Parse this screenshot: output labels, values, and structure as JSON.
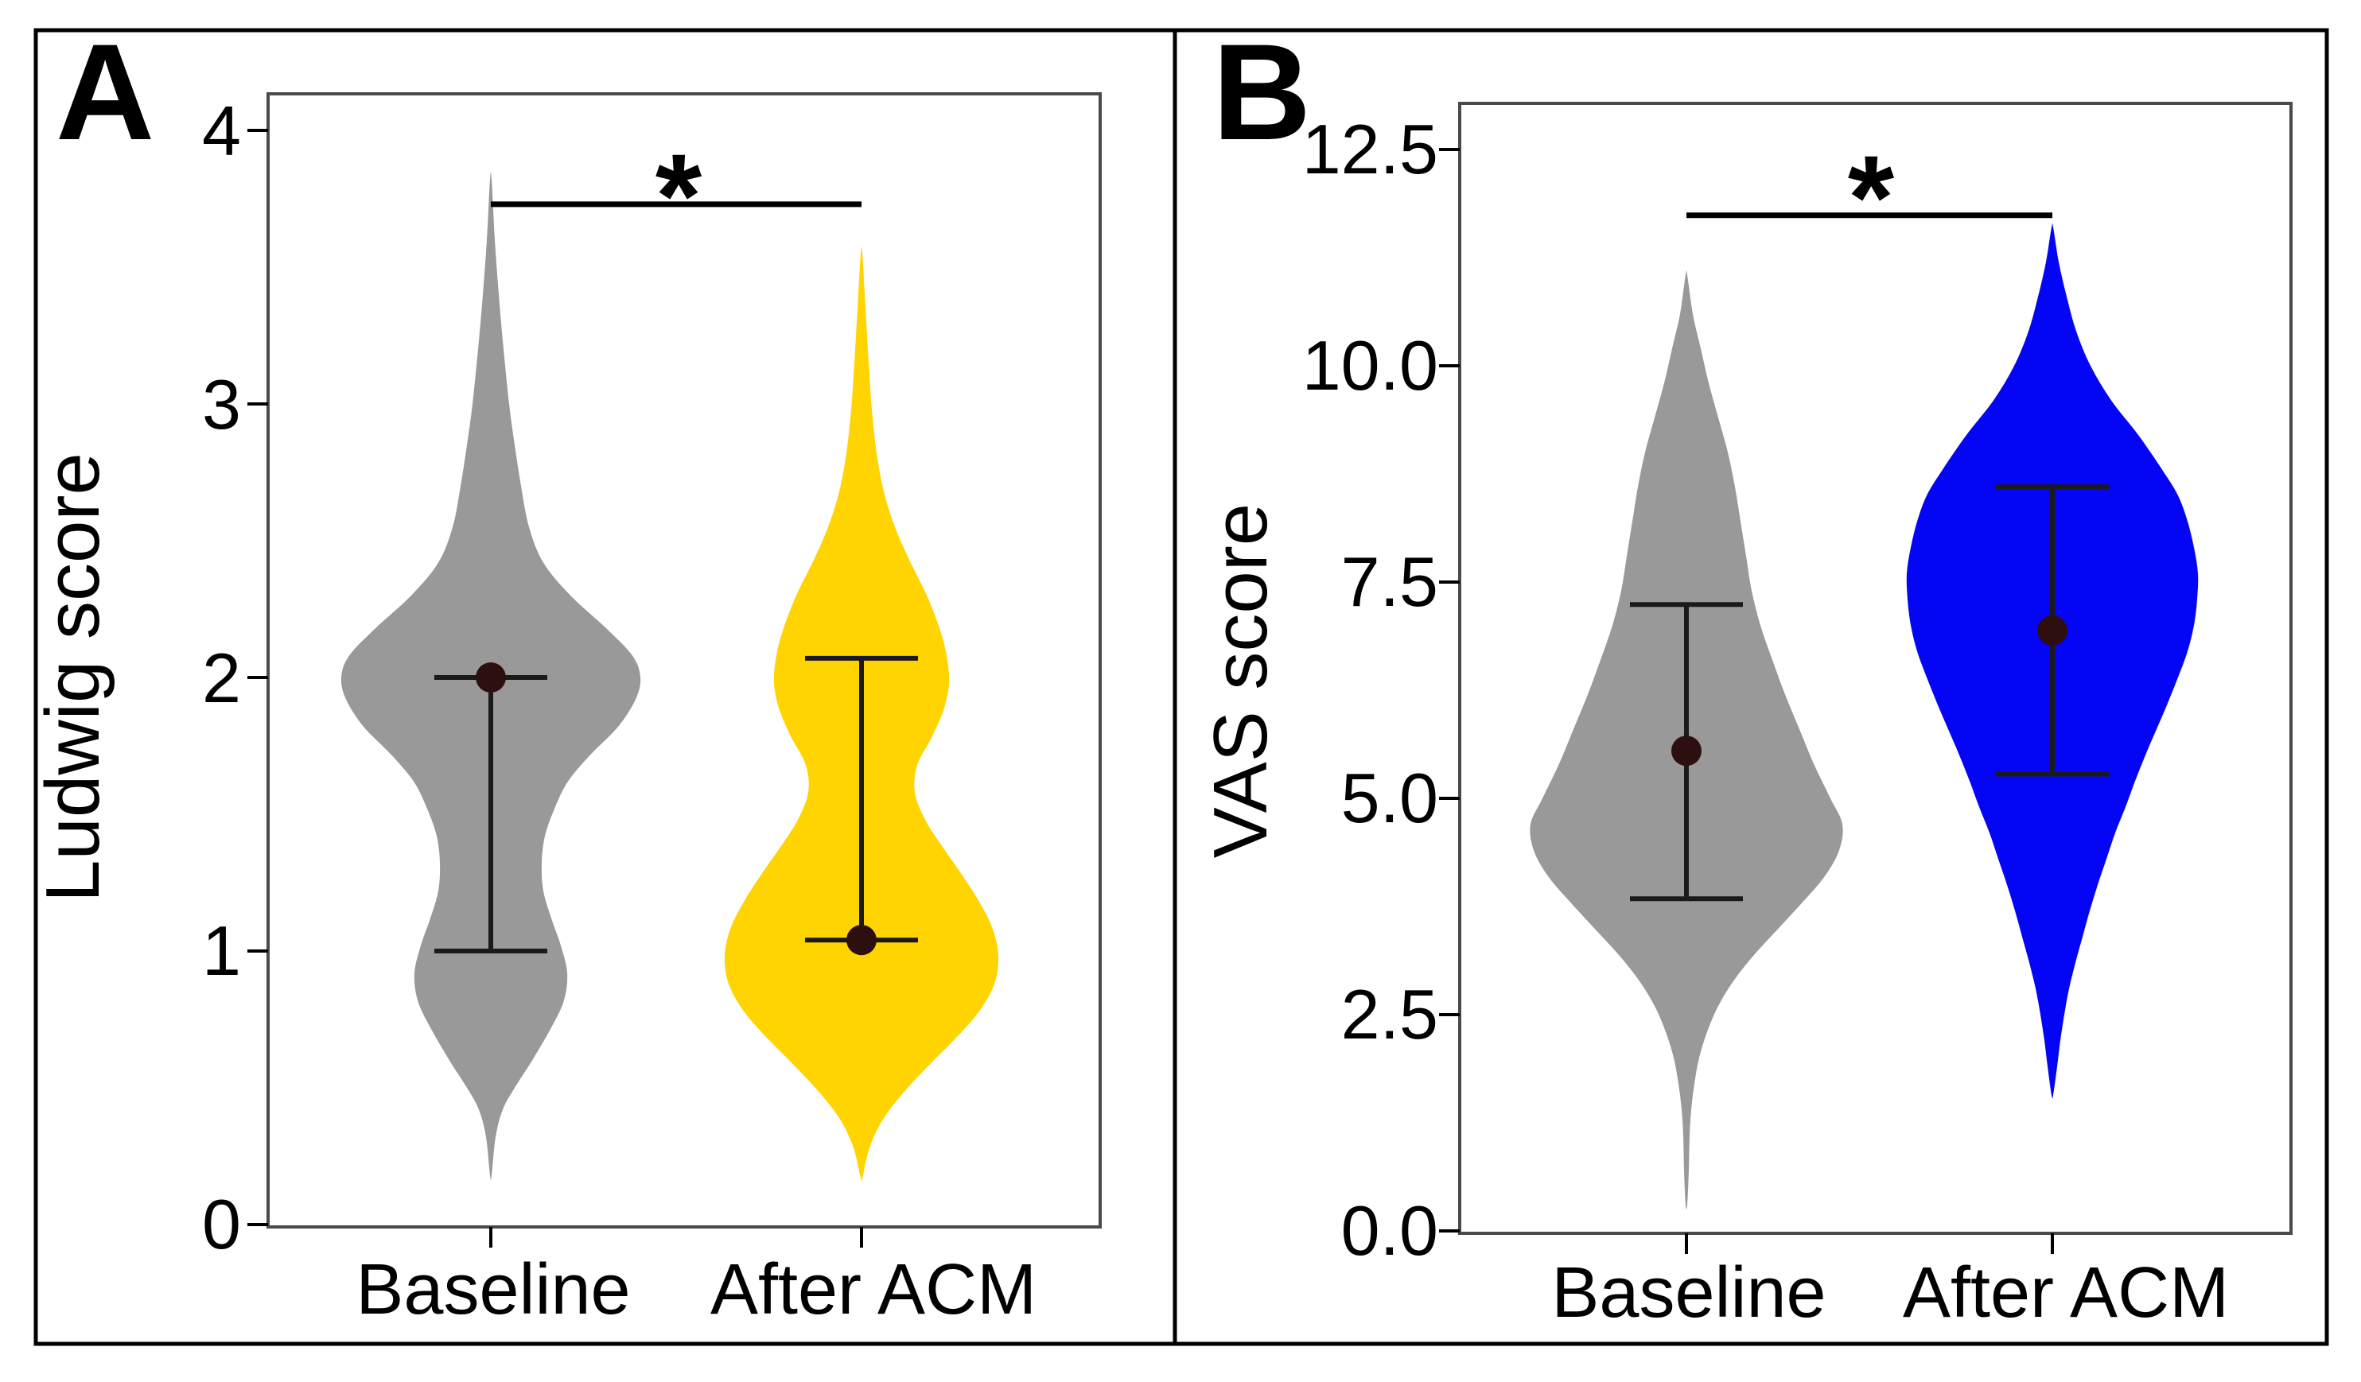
{
  "figure": {
    "panel_letters": [
      "A",
      "B"
    ],
    "background": "#ffffff",
    "border_color": "#000000"
  },
  "chart_data": [
    {
      "type": "violin",
      "panel": "A",
      "title": "",
      "xlabel": "",
      "ylabel": "Ludwig score",
      "ylim": [
        0,
        4
      ],
      "yticks": [
        4,
        3,
        2,
        1,
        0
      ],
      "ytick_labels": [
        "4",
        "3",
        "2",
        "1",
        "0"
      ],
      "categories": [
        "Baseline",
        "After ACM"
      ],
      "grid": false,
      "legend": "none",
      "marker_color": "#2e0f0f",
      "line_color": "#1a1a1a",
      "box_color": "#4a4a4a",
      "significance": {
        "label": "*",
        "between": [
          0,
          1
        ],
        "bar_y": 3.73
      },
      "series": [
        {
          "name": "Baseline",
          "color": "#999999",
          "mean": 2.0,
          "err_low": 1.0,
          "err_high": 2.0,
          "range": [
            0.18,
            3.82
          ],
          "profile": [
            [
              3.82,
              1
            ],
            [
              3.6,
              5
            ],
            [
              3.4,
              10
            ],
            [
              3.2,
              16
            ],
            [
              3.0,
              23
            ],
            [
              2.85,
              30
            ],
            [
              2.7,
              38
            ],
            [
              2.55,
              48
            ],
            [
              2.42,
              66
            ],
            [
              2.3,
              100
            ],
            [
              2.18,
              145
            ],
            [
              2.08,
              178
            ],
            [
              2.0,
              188
            ],
            [
              1.92,
              182
            ],
            [
              1.82,
              160
            ],
            [
              1.72,
              126
            ],
            [
              1.62,
              97
            ],
            [
              1.52,
              80
            ],
            [
              1.42,
              68
            ],
            [
              1.32,
              64
            ],
            [
              1.22,
              66
            ],
            [
              1.12,
              76
            ],
            [
              1.02,
              88
            ],
            [
              0.92,
              96
            ],
            [
              0.82,
              92
            ],
            [
              0.72,
              76
            ],
            [
              0.6,
              52
            ],
            [
              0.5,
              30
            ],
            [
              0.42,
              15
            ],
            [
              0.32,
              6
            ],
            [
              0.18,
              1
            ]
          ]
        },
        {
          "name": "After ACM",
          "color": "#ffd400",
          "mean": 1.04,
          "err_low": 1.04,
          "err_high": 2.07,
          "range": [
            0.17,
            3.55
          ],
          "profile": [
            [
              3.55,
              1
            ],
            [
              3.35,
              5
            ],
            [
              3.15,
              9
            ],
            [
              2.98,
              13
            ],
            [
              2.82,
              19
            ],
            [
              2.68,
              28
            ],
            [
              2.55,
              42
            ],
            [
              2.43,
              60
            ],
            [
              2.3,
              82
            ],
            [
              2.18,
              98
            ],
            [
              2.08,
              107
            ],
            [
              1.98,
              110
            ],
            [
              1.88,
              103
            ],
            [
              1.78,
              88
            ],
            [
              1.68,
              70
            ],
            [
              1.58,
              67
            ],
            [
              1.48,
              80
            ],
            [
              1.38,
              102
            ],
            [
              1.28,
              126
            ],
            [
              1.18,
              148
            ],
            [
              1.08,
              165
            ],
            [
              0.98,
              172
            ],
            [
              0.88,
              167
            ],
            [
              0.78,
              148
            ],
            [
              0.68,
              118
            ],
            [
              0.58,
              84
            ],
            [
              0.48,
              52
            ],
            [
              0.38,
              26
            ],
            [
              0.28,
              10
            ],
            [
              0.17,
              1
            ]
          ]
        }
      ]
    },
    {
      "type": "violin",
      "panel": "B",
      "title": "",
      "xlabel": "",
      "ylabel": "VAS score",
      "ylim": [
        0,
        12.5
      ],
      "yticks": [
        12.5,
        10.0,
        7.5,
        5.0,
        2.5,
        0.0
      ],
      "ytick_labels": [
        "12.5",
        "10.0",
        "7.5",
        "5.0",
        "2.5",
        "0.0"
      ],
      "categories": [
        "Baseline",
        "After ACM"
      ],
      "grid": false,
      "legend": "none",
      "marker_color": "#2e0f0f",
      "line_color": "#1a1a1a",
      "box_color": "#4a4a4a",
      "significance": {
        "label": "*",
        "between": [
          0,
          1
        ],
        "bar_y": 11.74
      },
      "series": [
        {
          "name": "Baseline",
          "color": "#999999",
          "mean": 5.55,
          "err_low": 3.84,
          "err_high": 7.24,
          "range": [
            0.3,
            11.05
          ],
          "profile": [
            [
              11.05,
              1
            ],
            [
              10.6,
              8
            ],
            [
              10.2,
              18
            ],
            [
              9.8,
              28
            ],
            [
              9.4,
              40
            ],
            [
              9.0,
              52
            ],
            [
              8.6,
              61
            ],
            [
              8.2,
              68
            ],
            [
              7.8,
              75
            ],
            [
              7.4,
              82
            ],
            [
              7.0,
              93
            ],
            [
              6.6,
              108
            ],
            [
              6.2,
              124
            ],
            [
              5.8,
              142
            ],
            [
              5.4,
              160
            ],
            [
              5.0,
              181
            ],
            [
              4.7,
              196
            ],
            [
              4.4,
              192
            ],
            [
              4.1,
              174
            ],
            [
              3.8,
              146
            ],
            [
              3.5,
              116
            ],
            [
              3.2,
              86
            ],
            [
              2.9,
              60
            ],
            [
              2.6,
              40
            ],
            [
              2.3,
              26
            ],
            [
              2.0,
              16
            ],
            [
              1.7,
              10
            ],
            [
              1.4,
              6
            ],
            [
              1.1,
              4
            ],
            [
              0.7,
              3
            ],
            [
              0.3,
              1
            ]
          ]
        },
        {
          "name": "After ACM",
          "color": "#0505f5",
          "mean": 6.94,
          "err_low": 5.28,
          "err_high": 8.6,
          "range": [
            1.57,
            11.6
          ],
          "profile": [
            [
              11.6,
              1
            ],
            [
              11.2,
              8
            ],
            [
              10.8,
              18
            ],
            [
              10.4,
              30
            ],
            [
              10.0,
              48
            ],
            [
              9.6,
              74
            ],
            [
              9.2,
              108
            ],
            [
              8.8,
              138
            ],
            [
              8.5,
              158
            ],
            [
              8.2,
              170
            ],
            [
              7.9,
              178
            ],
            [
              7.6,
              183
            ],
            [
              7.3,
              182
            ],
            [
              7.0,
              178
            ],
            [
              6.7,
              170
            ],
            [
              6.4,
              158
            ],
            [
              6.1,
              145
            ],
            [
              5.8,
              131
            ],
            [
              5.5,
              117
            ],
            [
              5.2,
              104
            ],
            [
              4.9,
              92
            ],
            [
              4.6,
              79
            ],
            [
              4.3,
              68
            ],
            [
              4.0,
              57
            ],
            [
              3.7,
              47
            ],
            [
              3.4,
              38
            ],
            [
              3.1,
              29
            ],
            [
              2.8,
              21
            ],
            [
              2.5,
              15
            ],
            [
              2.2,
              10
            ],
            [
              1.9,
              6
            ],
            [
              1.57,
              1
            ]
          ]
        }
      ]
    }
  ]
}
